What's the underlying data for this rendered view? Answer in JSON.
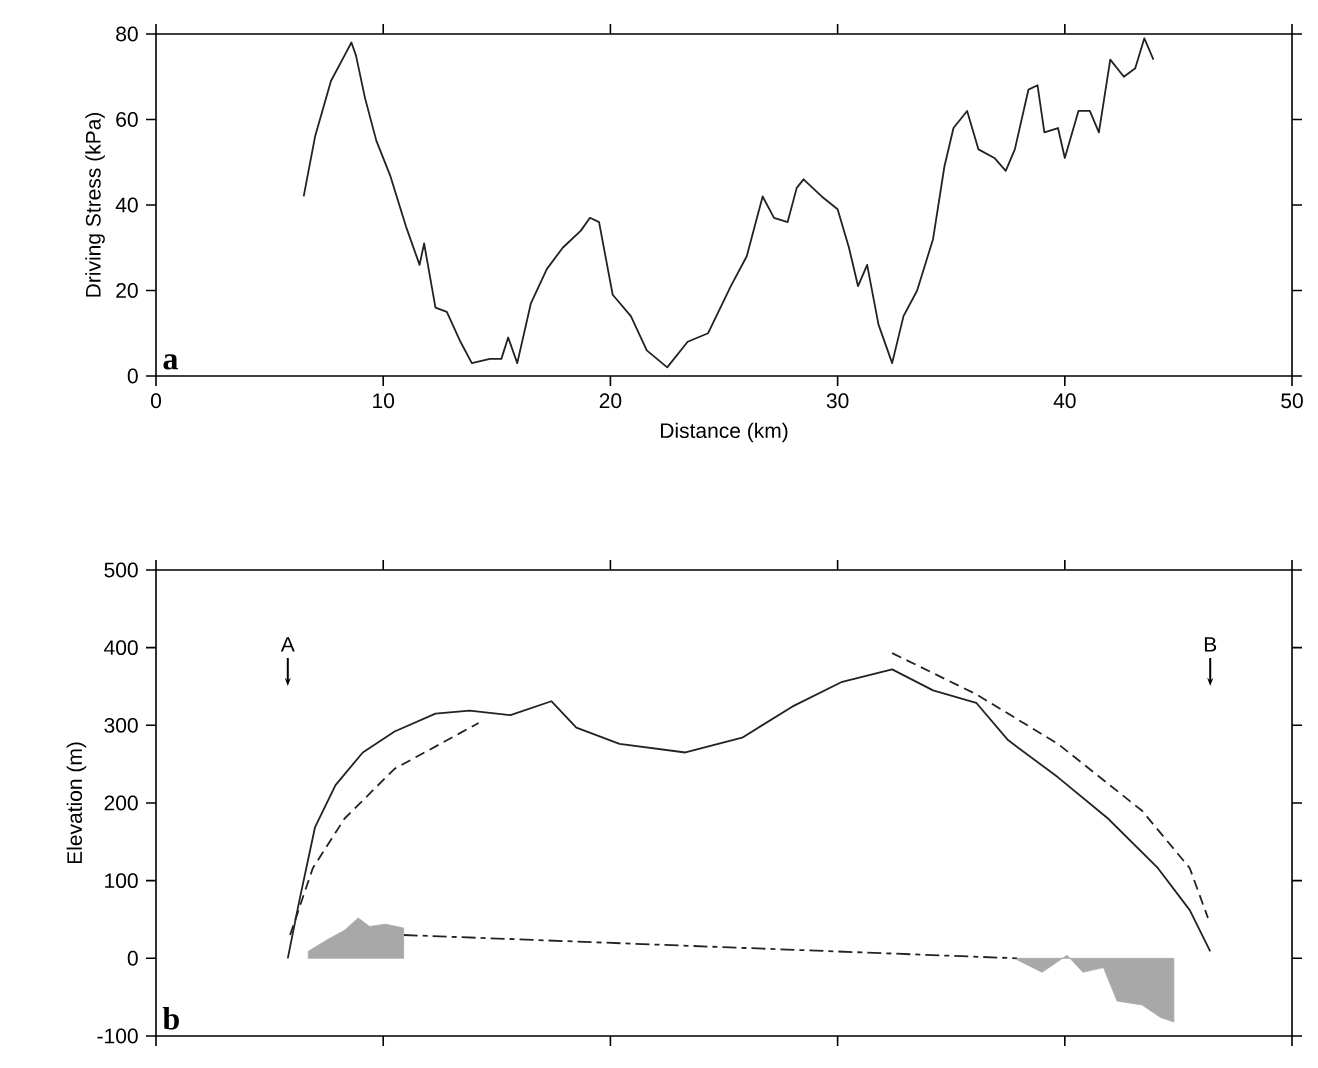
{
  "chart_data": [
    {
      "type": "line",
      "xlabel": "Distance (km)",
      "ylabel": "Driving Stress (kPa)",
      "annotations": [
        "a"
      ],
      "xlim": [
        0,
        50
      ],
      "xticks": [
        0,
        10,
        20,
        30,
        40,
        50
      ],
      "ylim": [
        0,
        80
      ],
      "yticks": [
        0,
        20,
        40,
        60,
        80
      ],
      "series": [
        {
          "color": "#222222",
          "line_style": "solid",
          "x": [
            6.5,
            7.0,
            7.7,
            8.3,
            8.6,
            8.8,
            9.2,
            9.7,
            10.3,
            11.0,
            11.6,
            11.8,
            12.3,
            12.8,
            13.4,
            13.9,
            14.7,
            15.2,
            15.5,
            15.9,
            16.5,
            17.2,
            17.9,
            18.7,
            19.1,
            19.5,
            20.1,
            20.9,
            21.6,
            22.5,
            23.4,
            24.3,
            25.3,
            26.0,
            26.7,
            27.2,
            27.8,
            28.2,
            28.5,
            29.3,
            30.0,
            30.5,
            30.9,
            31.3,
            31.8,
            32.4,
            32.9,
            33.5,
            34.2,
            34.7,
            35.1,
            35.7,
            36.2,
            36.9,
            37.4,
            37.8,
            38.4,
            38.8,
            39.1,
            39.7,
            40.0,
            40.6,
            41.1,
            41.5,
            42.0,
            42.6,
            43.1,
            43.5,
            43.9
          ],
          "values": [
            42,
            56,
            69,
            75,
            78,
            75,
            65,
            55,
            47,
            35,
            26,
            31,
            16,
            15,
            8,
            3,
            4,
            4,
            9,
            3,
            17,
            25,
            30,
            34,
            37,
            36,
            19,
            14,
            6,
            2,
            8,
            10,
            21,
            28,
            42,
            37,
            36,
            44,
            46,
            42,
            39,
            30,
            21,
            26,
            12,
            3,
            14,
            20,
            32,
            49,
            58,
            62,
            53,
            51,
            48,
            53,
            67,
            68,
            57,
            58,
            51,
            62,
            62,
            57,
            74,
            70,
            72,
            79,
            74
          ]
        }
      ]
    },
    {
      "type": "line",
      "ylabel": "Elevation (m)",
      "tick_labels": "y",
      "annotations": [
        "b",
        "A",
        "B"
      ],
      "xlim": [
        0,
        50
      ],
      "xticks": [
        0,
        10,
        20,
        30,
        40,
        50
      ],
      "ylim": [
        -100,
        500
      ],
      "yticks": [
        -100,
        0,
        100,
        200,
        300,
        400,
        500
      ],
      "series": [
        {
          "color": "#222222",
          "line_style": "solid",
          "x": [
            5.8,
            6.3,
            7.0,
            7.9,
            9.1,
            10.5,
            12.3,
            13.8,
            15.6,
            17.4,
            18.5,
            20.4,
            23.3,
            25.8,
            28.0,
            30.2,
            32.4,
            34.2,
            36.1,
            37.5,
            39.7,
            41.9,
            44.1,
            45.5,
            46.4
          ],
          "values": [
            0,
            73,
            169,
            223,
            265,
            292,
            315,
            319,
            313,
            331,
            297,
            276,
            265,
            284,
            324,
            356,
            372,
            345,
            329,
            281,
            233,
            180,
            116,
            62,
            9
          ]
        },
        {
          "color": "#222222",
          "line_style": "dashed",
          "x": [
            5.9,
            6.9,
            8.3,
            10.5,
            14.2
          ],
          "values": [
            30,
            116,
            180,
            244,
            303
          ]
        },
        {
          "color": "#222222",
          "line_style": "dashed",
          "x": [
            32.4,
            36.1,
            39.7,
            43.4,
            45.5,
            46.3
          ],
          "values": [
            393,
            340,
            276,
            190,
            116,
            52
          ]
        },
        {
          "color": "#222222",
          "line_style": "dashdot",
          "x": [
            10.9,
            37.9
          ],
          "values": [
            30,
            0
          ]
        },
        {
          "type": "area",
          "color": "#a8a8a8",
          "x": [
            6.7,
            7.6,
            8.3,
            8.9,
            9.4,
            10.1,
            10.9
          ],
          "values": [
            9,
            25,
            36,
            52,
            41,
            44,
            39
          ]
        },
        {
          "type": "area",
          "color": "#a8a8a8",
          "x": [
            37.9,
            39.0,
            40.1,
            40.8,
            41.7,
            42.3,
            43.4,
            44.2,
            44.8
          ],
          "values": [
            -2,
            -18,
            4,
            -18,
            -12,
            -55,
            -60,
            -76,
            -82
          ]
        }
      ]
    }
  ]
}
